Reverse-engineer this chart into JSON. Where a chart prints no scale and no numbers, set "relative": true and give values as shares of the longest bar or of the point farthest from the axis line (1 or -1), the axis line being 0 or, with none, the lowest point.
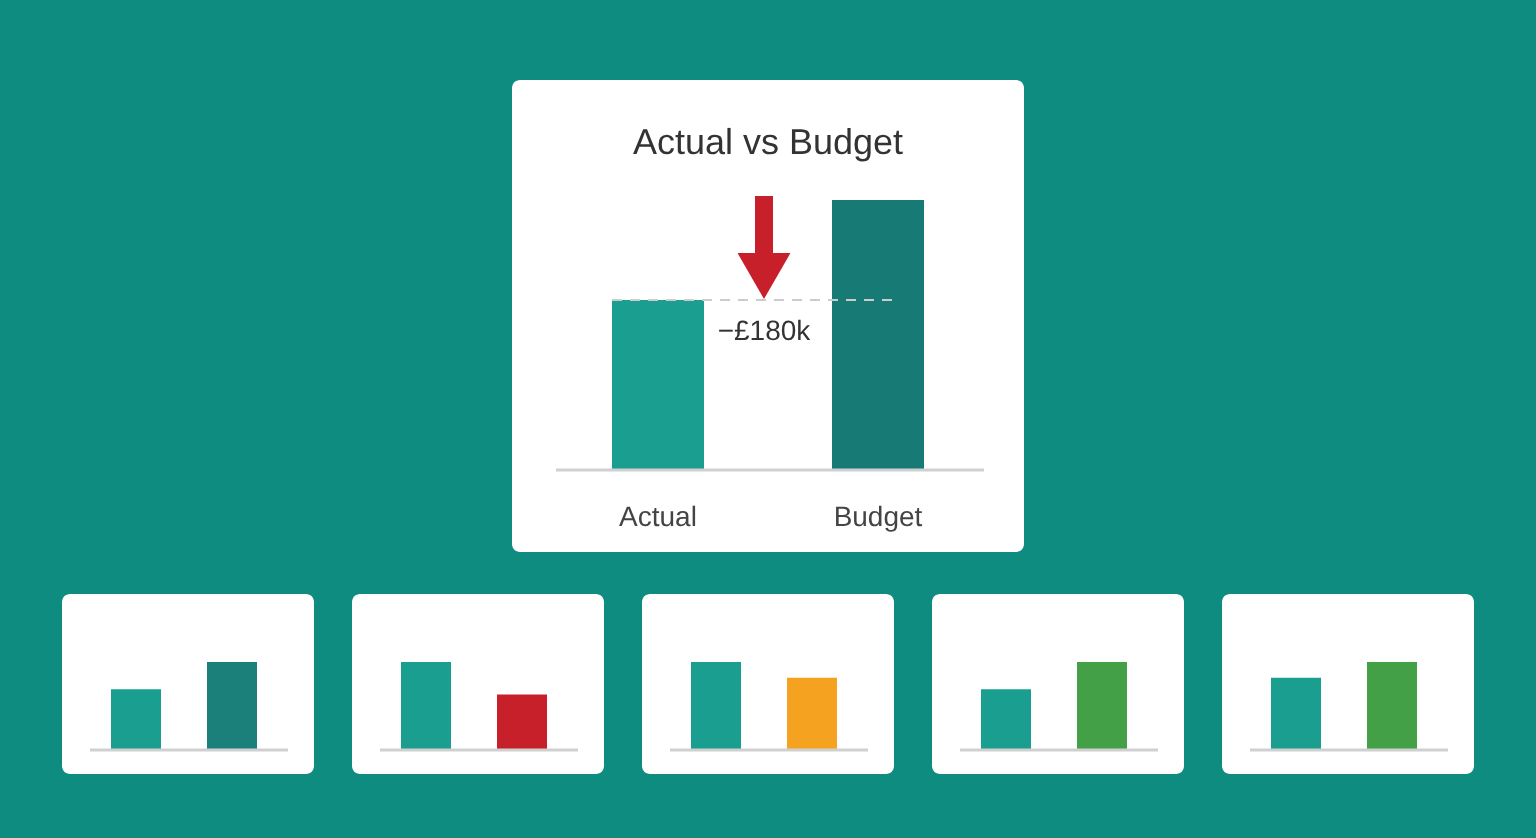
{
  "chart_data": [
    {
      "type": "bar",
      "title": "Actual vs Budget",
      "categories": [
        "Actual",
        "Budget"
      ],
      "values": [
        0.63,
        1
      ],
      "colors": [
        "#1a9e8f",
        "#177a74"
      ],
      "relative": true,
      "annotations": [
        "−£180k"
      ],
      "ref_lines": [
        {
          "axis": "y",
          "value": 0.63,
          "color": "#cccccc",
          "line_style": "dashed"
        }
      ]
    },
    {
      "type": "bar",
      "categories": [
        null,
        null
      ],
      "values": [
        0.69,
        1
      ],
      "colors": [
        "#1a9e8f",
        "#1b7f7a"
      ],
      "relative": true
    },
    {
      "type": "bar",
      "categories": [
        null,
        null
      ],
      "values": [
        1,
        0.63
      ],
      "colors": [
        "#1a9e8f",
        "#c8202a"
      ],
      "relative": true
    },
    {
      "type": "bar",
      "categories": [
        null,
        null
      ],
      "values": [
        1,
        0.82
      ],
      "colors": [
        "#1a9e8f",
        "#f4a21f"
      ],
      "relative": true
    },
    {
      "type": "bar",
      "categories": [
        null,
        null
      ],
      "values": [
        0.69,
        1
      ],
      "colors": [
        "#1a9e8f",
        "#43a047"
      ],
      "relative": true
    },
    {
      "type": "bar",
      "categories": [
        null,
        null
      ],
      "values": [
        0.82,
        1
      ],
      "colors": [
        "#1a9e8f",
        "#43a047"
      ],
      "relative": true
    }
  ]
}
